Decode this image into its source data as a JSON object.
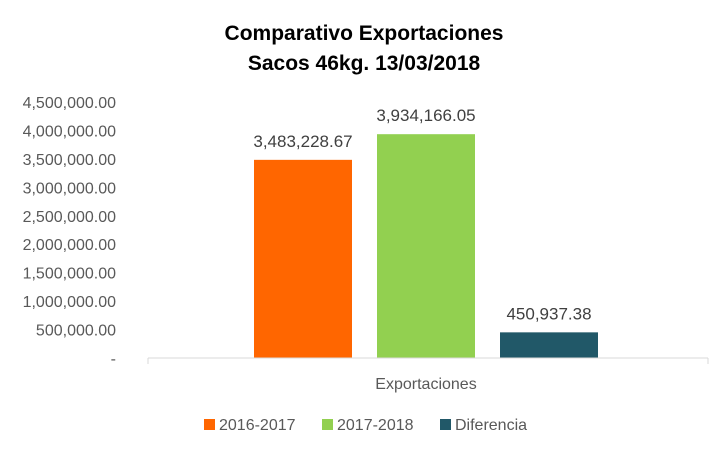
{
  "chart_data": {
    "type": "bar",
    "title": [
      "Comparativo Exportaciones",
      "Sacos 46kg. 13/03/2018"
    ],
    "categories": [
      "Exportaciones"
    ],
    "series": [
      {
        "name": "2016-2017",
        "values": [
          3483228.67
        ],
        "color": "#FF6600",
        "label": "3,483,228.67"
      },
      {
        "name": "2017-2018",
        "values": [
          3934166.05
        ],
        "color": "#92D050",
        "label": "3,934,166.05"
      },
      {
        "name": "Diferencia",
        "values": [
          450937.38
        ],
        "color": "#215868",
        "label": "450,937.38"
      }
    ],
    "ylim": [
      0,
      4500000
    ],
    "yticks": [
      {
        "value": 0,
        "label": "-"
      },
      {
        "value": 500000,
        "label": "500,000.00"
      },
      {
        "value": 1000000,
        "label": "1,000,000.00"
      },
      {
        "value": 1500000,
        "label": "1,500,000.00"
      },
      {
        "value": 2000000,
        "label": "2,000,000.00"
      },
      {
        "value": 2500000,
        "label": "2,500,000.00"
      },
      {
        "value": 3000000,
        "label": "3,000,000.00"
      },
      {
        "value": 3500000,
        "label": "3,500,000.00"
      },
      {
        "value": 4000000,
        "label": "4,000,000.00"
      },
      {
        "value": 4500000,
        "label": "4,500,000.00"
      }
    ],
    "grid": false,
    "legend_position": "bottom"
  }
}
